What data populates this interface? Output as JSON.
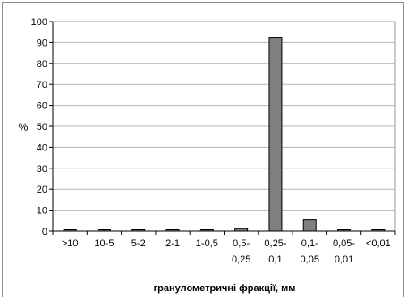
{
  "chart_data": {
    "type": "bar",
    "title": "",
    "xlabel": "гранулометричні фракції, мм",
    "ylabel": "%",
    "ylim": [
      0,
      100
    ],
    "yticks": [
      0,
      10,
      20,
      30,
      40,
      50,
      60,
      70,
      80,
      90,
      100
    ],
    "grid": true,
    "legend": "none",
    "bar_color": "#7f7f7f",
    "categories": [
      [
        ">10"
      ],
      [
        "10-5"
      ],
      [
        "5-2"
      ],
      [
        "2-1"
      ],
      [
        "1-0,5"
      ],
      [
        "0,5-",
        "0,25"
      ],
      [
        "0,25-",
        "0,1"
      ],
      [
        "0,1-",
        "0,05"
      ],
      [
        "0,05-",
        "0,01"
      ],
      [
        "<0,01"
      ]
    ],
    "values": [
      0.1,
      0.1,
      0.1,
      0.1,
      0.1,
      1.2,
      92.5,
      5.3,
      0.6,
      0.6
    ]
  }
}
